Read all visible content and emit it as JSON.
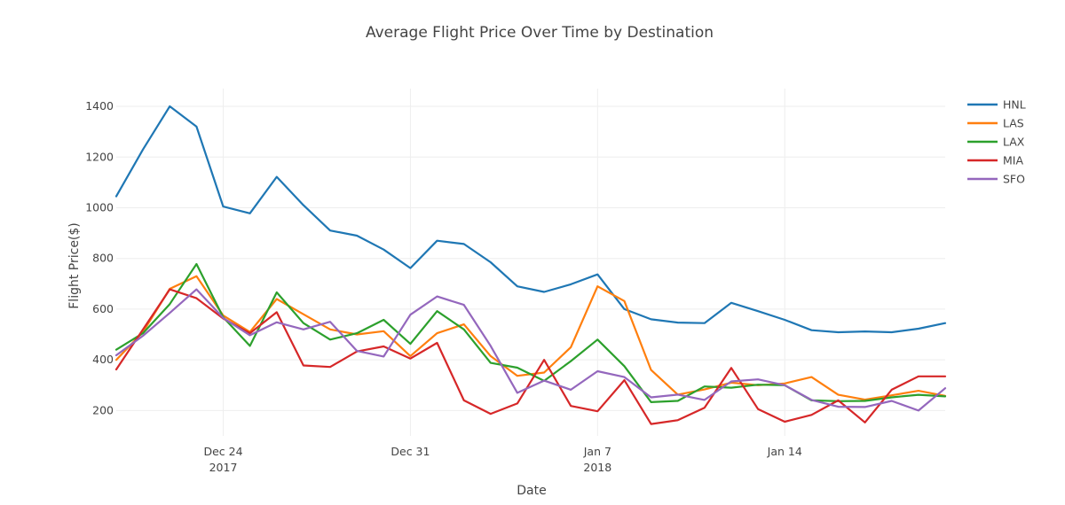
{
  "chart_data": {
    "type": "line",
    "title": "Average Flight Price Over Time by Destination",
    "xlabel": "Date",
    "ylabel": "Flight Price($)",
    "x": [
      "2017-12-20",
      "2017-12-21",
      "2017-12-22",
      "2017-12-23",
      "2017-12-24",
      "2017-12-25",
      "2017-12-26",
      "2017-12-27",
      "2017-12-28",
      "2017-12-29",
      "2017-12-30",
      "2017-12-31",
      "2018-01-01",
      "2018-01-02",
      "2018-01-03",
      "2018-01-04",
      "2018-01-05",
      "2018-01-06",
      "2018-01-07",
      "2018-01-08",
      "2018-01-09",
      "2018-01-10",
      "2018-01-11",
      "2018-01-12",
      "2018-01-13",
      "2018-01-14",
      "2018-01-15",
      "2018-01-16",
      "2018-01-17",
      "2018-01-18",
      "2018-01-19",
      "2018-01-20"
    ],
    "xlim": [
      "2017-12-20",
      "2018-01-20"
    ],
    "ylim": [
      100,
      1470
    ],
    "x_ticks": [
      {
        "date": "2017-12-24",
        "label": "Dec 24",
        "sublabel": "2017"
      },
      {
        "date": "2017-12-31",
        "label": "Dec 31",
        "sublabel": ""
      },
      {
        "date": "2018-01-07",
        "label": "Jan 7",
        "sublabel": "2018"
      },
      {
        "date": "2018-01-14",
        "label": "Jan 14",
        "sublabel": ""
      }
    ],
    "y_ticks": [
      200,
      400,
      600,
      800,
      1000,
      1200,
      1400
    ],
    "grid": true,
    "legend": "right",
    "series": [
      {
        "name": "HNL",
        "color": "#1f77b4",
        "values": [
          1045,
          1230,
          1400,
          1320,
          1005,
          978,
          1122,
          1010,
          910,
          890,
          835,
          762,
          870,
          857,
          785,
          690,
          668,
          698,
          737,
          600,
          560,
          547,
          545,
          625,
          592,
          558,
          517,
          509,
          512,
          509,
          523,
          545
        ]
      },
      {
        "name": "LAS",
        "color": "#ff7f0e",
        "values": [
          400,
          510,
          680,
          730,
          575,
          510,
          640,
          580,
          520,
          500,
          513,
          415,
          505,
          540,
          415,
          337,
          350,
          450,
          690,
          632,
          360,
          263,
          283,
          310,
          300,
          307,
          332,
          262,
          243,
          260,
          278,
          258
        ]
      },
      {
        "name": "LAX",
        "color": "#2ca02c",
        "values": [
          440,
          505,
          620,
          778,
          568,
          455,
          666,
          545,
          480,
          505,
          558,
          463,
          592,
          520,
          388,
          369,
          317,
          395,
          480,
          375,
          233,
          238,
          295,
          290,
          302,
          300,
          240,
          237,
          238,
          252,
          262,
          256
        ]
      },
      {
        "name": "MIA",
        "color": "#d62728",
        "values": [
          362,
          520,
          678,
          643,
          563,
          505,
          588,
          378,
          372,
          433,
          453,
          405,
          467,
          240,
          187,
          228,
          400,
          218,
          197,
          320,
          147,
          162,
          211,
          368,
          206,
          156,
          183,
          240,
          153,
          282,
          335,
          335
        ]
      },
      {
        "name": "SFO",
        "color": "#9467bd",
        "values": [
          418,
          495,
          585,
          678,
          565,
          497,
          548,
          520,
          550,
          435,
          413,
          578,
          650,
          617,
          455,
          270,
          318,
          282,
          355,
          332,
          252,
          263,
          242,
          315,
          323,
          300,
          242,
          215,
          214,
          238,
          200,
          288
        ]
      }
    ]
  }
}
